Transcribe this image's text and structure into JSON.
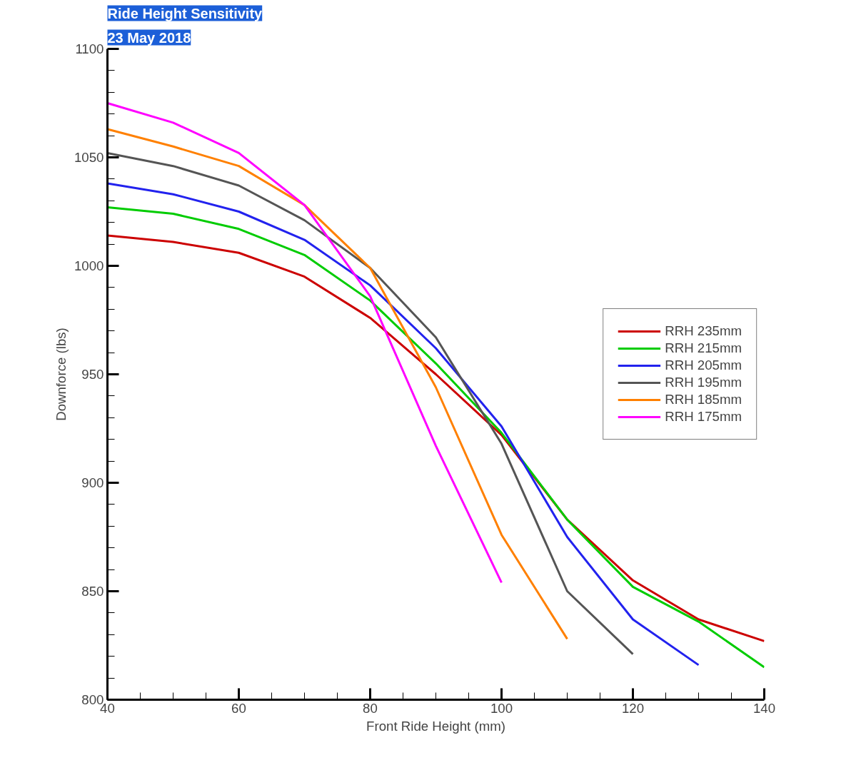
{
  "chart_data": {
    "type": "line",
    "title": "Ride Height Sensitivity",
    "subtitle": "23 May 2018",
    "xlabel": "Front Ride Height (mm)",
    "ylabel": "Downforce (lbs)",
    "xlim": [
      40,
      140
    ],
    "xticks": [
      40,
      60,
      80,
      100,
      120,
      140
    ],
    "ylim": [
      800,
      1100
    ],
    "yticks": [
      800,
      850,
      900,
      950,
      1000,
      1050,
      1100
    ],
    "grid": false,
    "legend": "right",
    "marker": "none",
    "line_style": "solid",
    "series": [
      {
        "name": "RRH 235mm",
        "color": "#cc0000",
        "x": [
          40,
          50,
          60,
          70,
          80,
          90,
          100,
          110,
          120,
          130,
          140
        ],
        "values": [
          1014,
          1011,
          1006,
          995,
          976,
          950,
          922,
          883,
          855,
          837,
          827
        ]
      },
      {
        "name": "RRH 215mm",
        "color": "#00cc00",
        "x": [
          40,
          50,
          60,
          70,
          80,
          90,
          100,
          110,
          120,
          130,
          140
        ],
        "values": [
          1027,
          1024,
          1017,
          1005,
          984,
          955,
          923,
          883,
          852,
          836,
          815
        ]
      },
      {
        "name": "RRH 205mm",
        "color": "#2222ee",
        "x": [
          40,
          50,
          60,
          70,
          80,
          90,
          100,
          110,
          120,
          130
        ],
        "values": [
          1038,
          1033,
          1025,
          1012,
          991,
          962,
          926,
          875,
          837,
          816
        ]
      },
      {
        "name": "RRH 195mm",
        "color": "#555555",
        "x": [
          40,
          50,
          60,
          70,
          80,
          90,
          100,
          110,
          120
        ],
        "values": [
          1052,
          1046,
          1037,
          1021,
          999,
          967,
          918,
          850,
          821
        ]
      },
      {
        "name": "RRH 185mm",
        "color": "#ff8000",
        "x": [
          40,
          50,
          60,
          70,
          80,
          90,
          100,
          110
        ],
        "values": [
          1063,
          1055,
          1046,
          1028,
          999,
          944,
          876,
          828
        ]
      },
      {
        "name": "RRH 175mm",
        "color": "#ff00ff",
        "x": [
          40,
          50,
          60,
          70,
          80,
          90,
          100
        ],
        "values": [
          1075,
          1066,
          1052,
          1028,
          986,
          917,
          854
        ]
      }
    ]
  }
}
